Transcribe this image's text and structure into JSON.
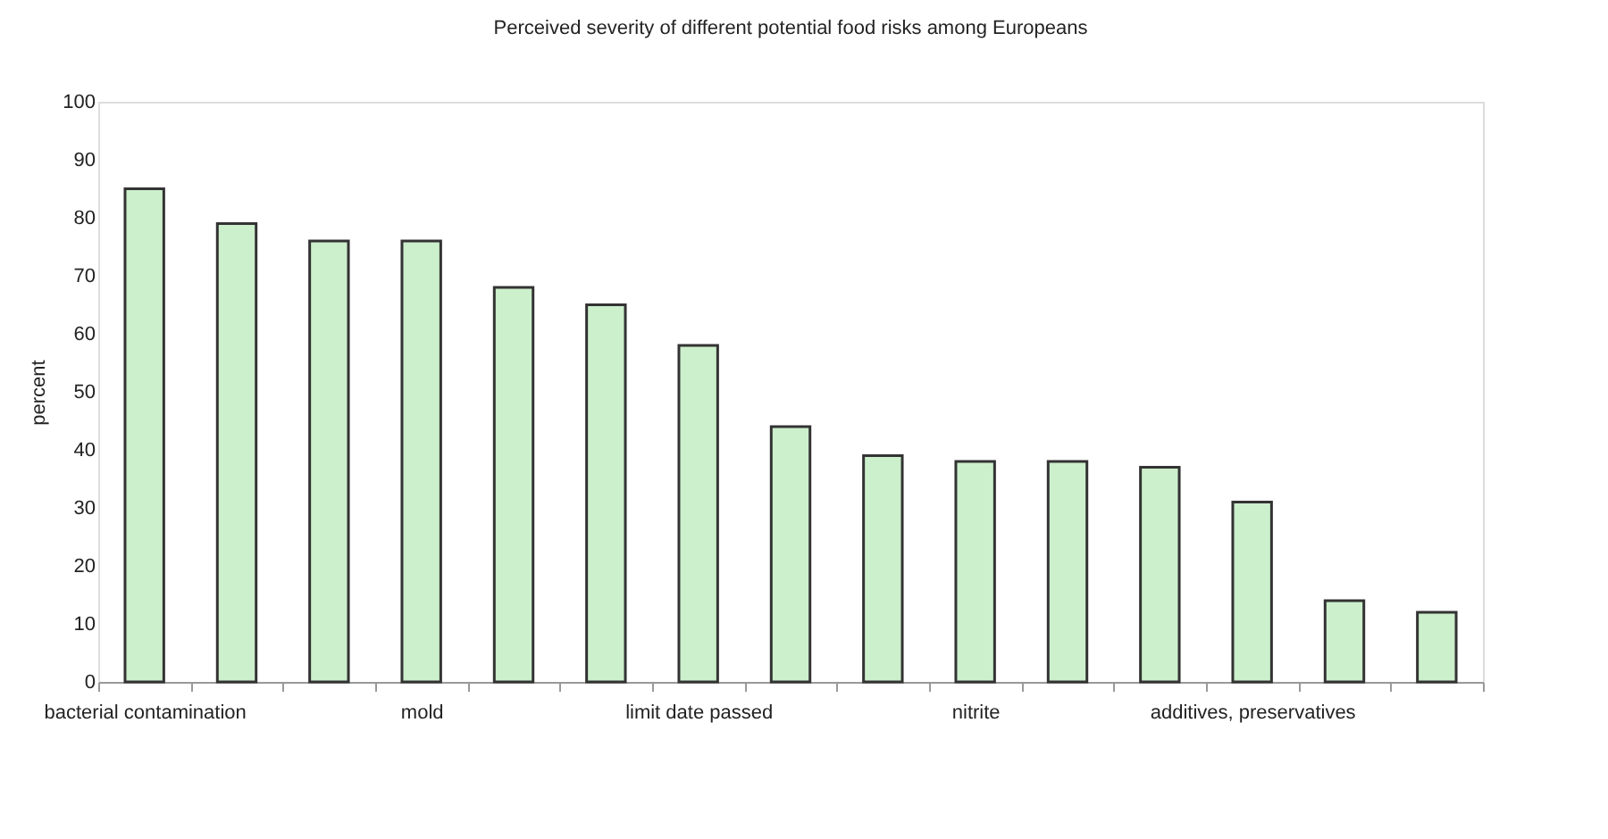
{
  "chart_data": {
    "type": "bar",
    "title": "Perceived severity of different potential food risks among Europeans",
    "ylabel": "percent",
    "categories": [
      "bacterial contamination",
      null,
      null,
      "mold",
      null,
      null,
      "limit date passed",
      null,
      null,
      "nitrite",
      null,
      null,
      "additives, preservatives",
      null,
      null
    ],
    "values": [
      85,
      79,
      76,
      76,
      68,
      65,
      58,
      44,
      39,
      38,
      38,
      37,
      31,
      14,
      12
    ],
    "color": "#ccefcc",
    "ylim": [
      0,
      100
    ],
    "yticks": [
      0,
      10,
      20,
      30,
      40,
      50,
      60,
      70,
      80,
      90,
      100
    ],
    "grid": false,
    "legend": false
  }
}
